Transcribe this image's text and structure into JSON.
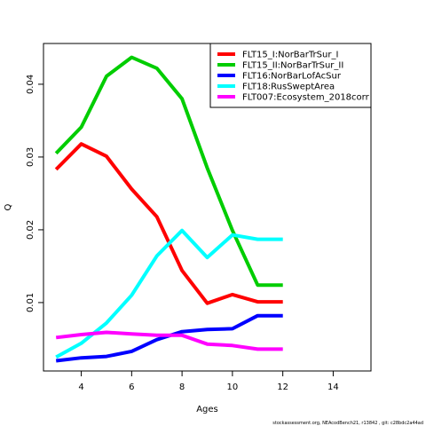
{
  "chart_data": {
    "type": "line",
    "xlabel": "Ages",
    "ylabel": "Q",
    "xlim": [
      2.5,
      15.5
    ],
    "ylim": [
      0.0006,
      0.0456
    ],
    "xticks": [
      4,
      6,
      8,
      10,
      12,
      14
    ],
    "yticks": [
      0.01,
      0.02,
      0.03,
      0.04
    ],
    "ytick_labels": [
      "0.01",
      "0.02",
      "0.03",
      "0.04"
    ],
    "grid": false,
    "legend_position": "top-right",
    "line_width": "thick",
    "series": [
      {
        "name": "FLT15_I:NorBarTrSur_I",
        "color": "#ff0000",
        "x": [
          3,
          4,
          5,
          6,
          7,
          8,
          9,
          10,
          11,
          12
        ],
        "y": [
          0.0283,
          0.0318,
          0.0301,
          0.0256,
          0.0218,
          0.0144,
          0.0099,
          0.0111,
          0.0101,
          0.0101
        ]
      },
      {
        "name": "FLT15_II:NorBarTrSur_II",
        "color": "#00cd00",
        "x": [
          3,
          4,
          5,
          6,
          7,
          8,
          9,
          10,
          11,
          12
        ],
        "y": [
          0.0305,
          0.0341,
          0.0411,
          0.0437,
          0.0422,
          0.038,
          0.0285,
          0.0199,
          0.0124,
          0.0124
        ]
      },
      {
        "name": "FLT16:NorBarLofAcSur",
        "color": "#0000ff",
        "x": [
          3,
          4,
          5,
          6,
          7,
          8,
          9,
          10,
          11,
          12
        ],
        "y": [
          0.002,
          0.0024,
          0.0026,
          0.0033,
          0.0049,
          0.006,
          0.0063,
          0.0064,
          0.0082,
          0.0082
        ]
      },
      {
        "name": "FLT18:RusSweptArea",
        "color": "#00ffff",
        "x": [
          3,
          4,
          5,
          6,
          7,
          8,
          9,
          10,
          11,
          12
        ],
        "y": [
          0.0025,
          0.0044,
          0.0072,
          0.011,
          0.0164,
          0.0199,
          0.0162,
          0.0193,
          0.0187,
          0.0187
        ]
      },
      {
        "name": "FLT007:Ecosystem_2018corr",
        "color": "#ff00ff",
        "x": [
          3,
          4,
          5,
          6,
          7,
          8,
          9,
          10,
          11,
          12
        ],
        "y": [
          0.0052,
          0.0056,
          0.0059,
          0.0057,
          0.0055,
          0.0055,
          0.0043,
          0.0041,
          0.0036,
          0.0036
        ]
      }
    ]
  },
  "footer_text": "stockassessment.org, NEAcodBench21, r13842 , git: c28bdc2a44ad"
}
